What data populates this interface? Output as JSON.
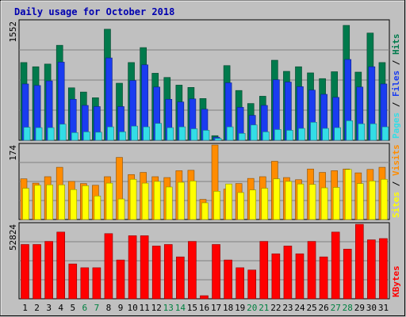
{
  "chart_data": {
    "type": "bar",
    "title": "Daily usage for October 2018",
    "categories": [
      "1",
      "2",
      "3",
      "4",
      "5",
      "6",
      "7",
      "8",
      "9",
      "10",
      "11",
      "12",
      "13",
      "14",
      "15",
      "16",
      "17",
      "18",
      "19",
      "20",
      "21",
      "22",
      "23",
      "24",
      "25",
      "26",
      "27",
      "28",
      "29",
      "30",
      "31"
    ],
    "weekend_days": [
      "6",
      "7",
      "13",
      "14",
      "20",
      "21",
      "27",
      "28"
    ],
    "panels": [
      {
        "key": "hits",
        "max_label": "1552",
        "ylim": [
          0,
          1552
        ],
        "legend": [
          "Pages",
          "Files",
          "Hits"
        ],
        "series": [
          {
            "name": "Hits",
            "color": "#007a4c",
            "values": [
              1015,
              960,
              995,
              1240,
              685,
              630,
              555,
              1450,
              745,
              1015,
              1210,
              875,
              820,
              720,
              690,
              545,
              60,
              975,
              650,
              480,
              575,
              1045,
              900,
              960,
              880,
              805,
              895,
              1500,
              890,
              1400,
              1015
            ]
          },
          {
            "name": "Files",
            "color": "#1a3cf0",
            "values": [
              735,
              715,
              775,
              1020,
              535,
              455,
              440,
              1075,
              440,
              780,
              985,
              695,
              535,
              500,
              540,
              405,
              40,
              750,
              430,
              325,
              455,
              790,
              760,
              700,
              655,
              600,
              560,
              1055,
              695,
              960,
              735
            ]
          },
          {
            "name": "Pages",
            "color": "#33dde6",
            "values": [
              170,
              165,
              165,
              210,
              100,
              110,
              105,
              175,
              110,
              185,
              175,
              220,
              165,
              175,
              150,
              130,
              25,
              175,
              90,
              200,
              110,
              140,
              130,
              155,
              235,
              155,
              165,
              255,
              215,
              215,
              175
            ]
          }
        ]
      },
      {
        "key": "visits",
        "max_label": "174",
        "ylim": [
          0,
          174
        ],
        "legend": [
          "Sites",
          "Visits"
        ],
        "series": [
          {
            "name": "Visits",
            "color": "#ff8c00",
            "values": [
              95,
              85,
              100,
              122,
              89,
              84,
              80,
              100,
              145,
              105,
              110,
              100,
              98,
              114,
              115,
              47,
              174,
              71,
              84,
              96,
              100,
              136,
              98,
              93,
              118,
              110,
              114,
              118,
              109,
              117,
              122
            ]
          },
          {
            "name": "Sites",
            "color": "#ffff00",
            "values": [
              73,
              80,
              81,
              81,
              70,
              79,
              55,
              85,
              48,
              94,
              85,
              89,
              76,
              87,
              90,
              39,
              66,
              83,
              63,
              69,
              73,
              95,
              89,
              83,
              82,
              74,
              75,
              117,
              84,
              90,
              94
            ]
          }
        ]
      },
      {
        "key": "kbytes",
        "max_label": "52824",
        "ylim": [
          0,
          52824
        ],
        "legend": [
          "KBytes"
        ],
        "series": [
          {
            "name": "KBytes",
            "color": "#ff0000",
            "values": [
              38500,
              38500,
              40700,
              47300,
              24700,
              22000,
              22000,
              46200,
              27500,
              44700,
              44700,
              37400,
              38500,
              29700,
              40700,
              2200,
              38500,
              27500,
              22000,
              20400,
              40700,
              31900,
              37400,
              31900,
              40700,
              29700,
              47300,
              35200,
              52800,
              41800,
              42700
            ]
          }
        ]
      }
    ]
  }
}
